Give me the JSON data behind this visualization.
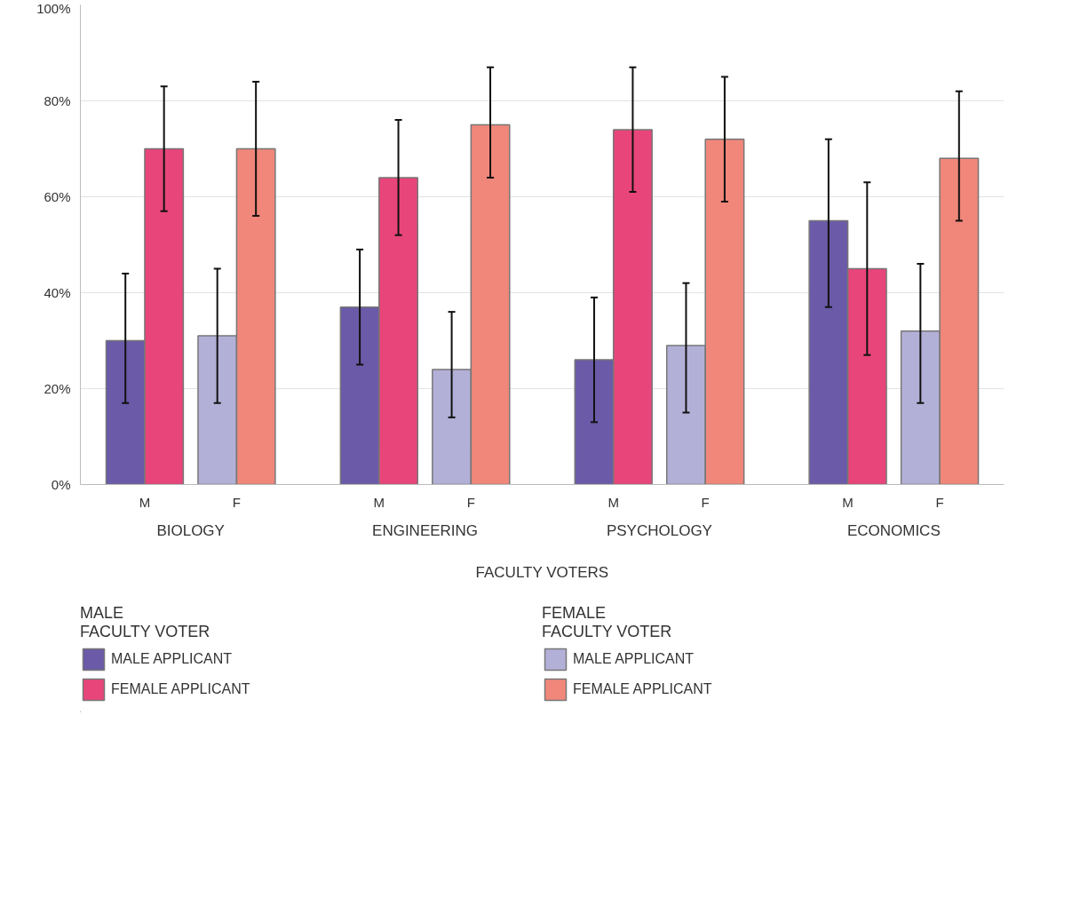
{
  "chart_data": {
    "type": "bar",
    "categories": [
      "M",
      "F",
      "M",
      "F",
      "M",
      "F",
      "M",
      "F"
    ],
    "xlabel": "FACULTY VOTERS",
    "annotations": [
      "BIOLOGY",
      "ENGINEERING",
      "PSYCHOLOGY",
      "ECONOMICS",
      "MALE\nFACULTY VOTER",
      "FEMALE\nFACULTY VOTER"
    ],
    "series": [
      {
        "name": "MALE APPLICANT",
        "color": "#6a5aa8",
        "values": [
          30,
          null,
          37,
          null,
          26,
          null,
          55,
          null
        ],
        "errors": [
          [
            17,
            44
          ],
          null,
          [
            25,
            49
          ],
          null,
          [
            13,
            39
          ],
          null,
          [
            37,
            72
          ],
          null
        ]
      },
      {
        "name": "FEMALE APPLICANT",
        "color": "#e8457a",
        "values": [
          70,
          null,
          64,
          null,
          74,
          null,
          45,
          null
        ],
        "errors": [
          [
            57,
            83
          ],
          null,
          [
            52,
            76
          ],
          null,
          [
            61,
            87
          ],
          null,
          [
            27,
            63
          ],
          null
        ]
      },
      {
        "name": "MALE APPLICANT",
        "color": "#b3b0d8",
        "values": [
          null,
          31,
          null,
          24,
          null,
          29,
          null,
          32
        ],
        "errors": [
          null,
          [
            17,
            45
          ],
          null,
          [
            14,
            36
          ],
          null,
          [
            15,
            42
          ],
          null,
          [
            17,
            46
          ]
        ]
      },
      {
        "name": "FEMALE APPLICANT",
        "color": "#f0877a",
        "values": [
          null,
          70,
          null,
          75,
          null,
          72,
          null,
          68
        ],
        "errors": [
          null,
          [
            56,
            84
          ],
          null,
          [
            64,
            87
          ],
          null,
          [
            59,
            85
          ],
          null,
          [
            55,
            82
          ]
        ]
      }
    ],
    "ylim": [
      0,
      100
    ],
    "yticks": [
      {
        "value": 0,
        "label": "0%"
      },
      {
        "value": 20,
        "label": "20%"
      },
      {
        "value": 40,
        "label": "40%"
      },
      {
        "value": 60,
        "label": "60%"
      },
      {
        "value": 80,
        "label": "80%"
      },
      {
        "value": 100,
        "label": "100%"
      }
    ],
    "grid": "y",
    "legend": "bottom"
  }
}
